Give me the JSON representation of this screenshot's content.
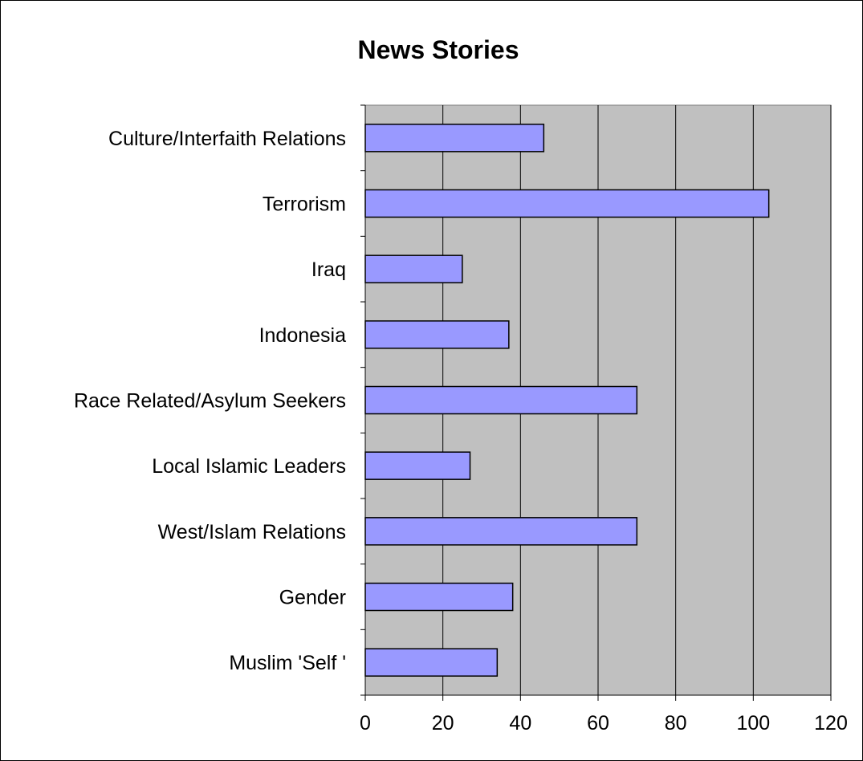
{
  "chart_data": {
    "type": "bar",
    "orientation": "horizontal",
    "title": "News Stories",
    "categories": [
      "Culture/Interfaith Relations",
      "Terrorism",
      "Iraq",
      "Indonesia",
      "Race Related/Asylum Seekers",
      "Local Islamic Leaders",
      "West/Islam Relations",
      "Gender",
      "Muslim 'Self '"
    ],
    "values": [
      46,
      104,
      25,
      37,
      70,
      27,
      70,
      38,
      34
    ],
    "xlim": [
      0,
      120
    ],
    "xticks": [
      "0",
      "20",
      "40",
      "60",
      "80",
      "100",
      "120"
    ],
    "grid": "vertical",
    "legend": "none",
    "colors": {
      "plot_background": "#c0c0c0",
      "bar_fill": "#9999ff",
      "bar_stroke": "#000000",
      "gridline": "#000000"
    }
  }
}
